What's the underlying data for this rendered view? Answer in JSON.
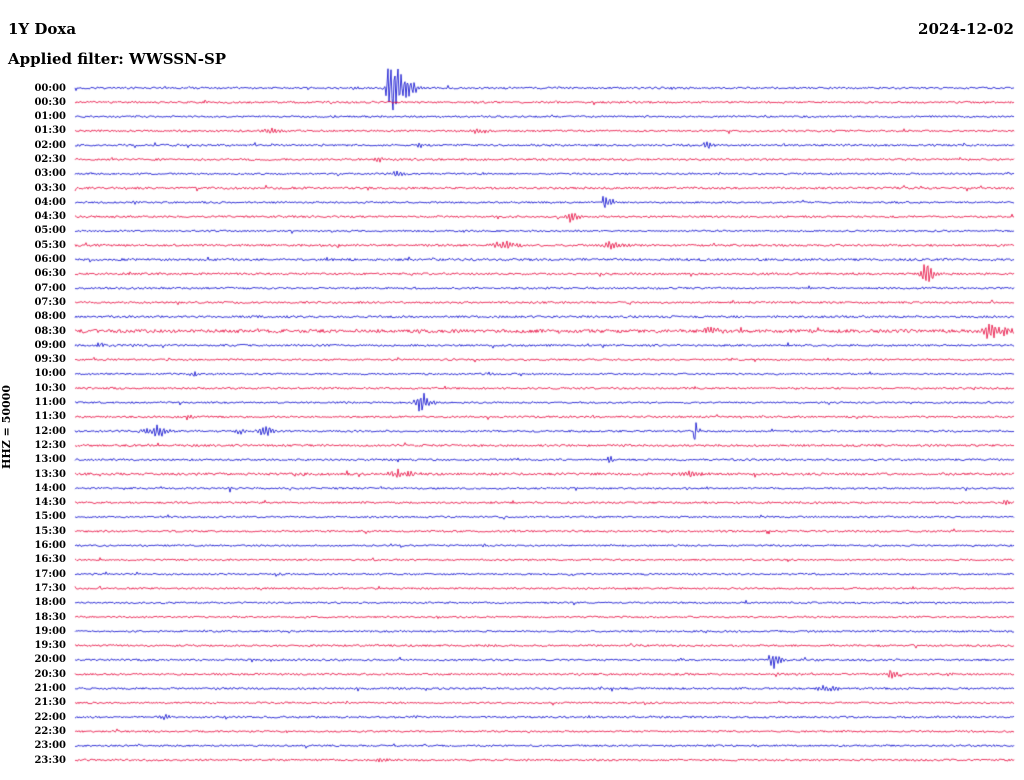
{
  "header": {
    "station": "1Y Doxa",
    "date": "2024-12-02",
    "filter_label": "Applied filter: WWSSN-SP"
  },
  "axis": {
    "left_label": "HHZ = 50000"
  },
  "chart_data": {
    "type": "line",
    "subtype": "seismogram-helicorder",
    "title": "1Y Doxa helicorder",
    "date": "2024-12-02",
    "filter": "WWSSN-SP",
    "channel_scale": "HHZ = 50000",
    "row_duration_min": 30,
    "colors": {
      "blue": "#0000cc",
      "red": "#e60039"
    },
    "note": "48 half-hour traces, alternating blue/red. Event positions p are fractions of trace width; a = peak amplitude (px); wl/wr = left/right envelope sigma (px).",
    "rows": [
      {
        "label": "00:00",
        "color": "blue",
        "noise": 1.0,
        "events": [
          {
            "p": 0.3,
            "a": 2,
            "wl": 4,
            "wr": 4
          },
          {
            "p": 0.335,
            "a": 24,
            "wl": 2.5,
            "wr": 14
          }
        ]
      },
      {
        "label": "00:30",
        "color": "red",
        "noise": 1.0,
        "events": [
          {
            "p": 0.23,
            "a": 1,
            "wl": 3,
            "wr": 3
          }
        ]
      },
      {
        "label": "01:00",
        "color": "blue",
        "noise": 0.9,
        "events": []
      },
      {
        "label": "01:30",
        "color": "red",
        "noise": 1.0,
        "events": [
          {
            "p": 0.21,
            "a": 3,
            "wl": 6,
            "wr": 8
          },
          {
            "p": 0.43,
            "a": 2.5,
            "wl": 5,
            "wr": 6
          }
        ]
      },
      {
        "label": "02:00",
        "color": "blue",
        "noise": 1.0,
        "events": [
          {
            "p": 0.262,
            "a": 1.5,
            "wl": 4,
            "wr": 4
          },
          {
            "p": 0.368,
            "a": 2,
            "wl": 3,
            "wr": 4
          },
          {
            "p": 0.671,
            "a": 4,
            "wl": 2,
            "wr": 5
          }
        ]
      },
      {
        "label": "02:30",
        "color": "red",
        "noise": 1.0,
        "events": [
          {
            "p": 0.323,
            "a": 2.5,
            "wl": 3,
            "wr": 4
          }
        ]
      },
      {
        "label": "03:00",
        "color": "blue",
        "noise": 0.9,
        "events": [
          {
            "p": 0.342,
            "a": 3.5,
            "wl": 2,
            "wr": 5
          }
        ]
      },
      {
        "label": "03:30",
        "color": "red",
        "noise": 1.1,
        "events": [
          {
            "p": 0.056,
            "a": 1.2,
            "wl": 3,
            "wr": 3
          }
        ]
      },
      {
        "label": "04:00",
        "color": "blue",
        "noise": 0.9,
        "events": [
          {
            "p": 0.063,
            "a": 2,
            "wl": 2,
            "wr": 3
          },
          {
            "p": 0.564,
            "a": 7,
            "wl": 2.5,
            "wr": 7
          }
        ]
      },
      {
        "label": "04:30",
        "color": "red",
        "noise": 1.0,
        "events": [
          {
            "p": 0.527,
            "a": 5,
            "wl": 2.5,
            "wr": 7
          }
        ]
      },
      {
        "label": "05:00",
        "color": "blue",
        "noise": 0.9,
        "events": []
      },
      {
        "label": "05:30",
        "color": "red",
        "noise": 1.1,
        "events": [
          {
            "p": 0.458,
            "a": 4,
            "wl": 9,
            "wr": 11
          },
          {
            "p": 0.57,
            "a": 4,
            "wl": 7,
            "wr": 9
          }
        ]
      },
      {
        "label": "06:00",
        "color": "blue",
        "noise": 1.2,
        "events": []
      },
      {
        "label": "06:30",
        "color": "red",
        "noise": 1.1,
        "events": [
          {
            "p": 0.905,
            "a": 9,
            "wl": 3,
            "wr": 8
          }
        ]
      },
      {
        "label": "07:00",
        "color": "blue",
        "noise": 1.0,
        "events": [
          {
            "p": 0.62,
            "a": 1.5,
            "wl": 3,
            "wr": 3
          }
        ]
      },
      {
        "label": "07:30",
        "color": "red",
        "noise": 1.0,
        "events": []
      },
      {
        "label": "08:00",
        "color": "blue",
        "noise": 1.1,
        "events": []
      },
      {
        "label": "08:30",
        "color": "red",
        "noise": 1.7,
        "events": [
          {
            "p": 0.675,
            "a": 3.5,
            "wl": 6,
            "wr": 8
          },
          {
            "p": 0.79,
            "a": 2,
            "wl": 3,
            "wr": 4
          },
          {
            "p": 0.974,
            "a": 8,
            "wl": 4,
            "wr": 16
          }
        ]
      },
      {
        "label": "09:00",
        "color": "blue",
        "noise": 1.0,
        "events": [
          {
            "p": 0.027,
            "a": 2,
            "wl": 3,
            "wr": 4
          },
          {
            "p": 0.064,
            "a": 2,
            "wl": 3,
            "wr": 4
          }
        ]
      },
      {
        "label": "09:30",
        "color": "red",
        "noise": 0.9,
        "events": []
      },
      {
        "label": "10:00",
        "color": "blue",
        "noise": 0.9,
        "events": [
          {
            "p": 0.128,
            "a": 2,
            "wl": 5,
            "wr": 6
          },
          {
            "p": 0.442,
            "a": 1.5,
            "wl": 4,
            "wr": 4
          }
        ]
      },
      {
        "label": "10:30",
        "color": "red",
        "noise": 1.0,
        "events": []
      },
      {
        "label": "11:00",
        "color": "blue",
        "noise": 0.9,
        "events": [
          {
            "p": 0.365,
            "a": 10,
            "wl": 2.5,
            "wr": 9
          }
        ]
      },
      {
        "label": "11:30",
        "color": "red",
        "noise": 1.0,
        "events": [
          {
            "p": 0.122,
            "a": 2.5,
            "wl": 4,
            "wr": 8
          }
        ]
      },
      {
        "label": "12:00",
        "color": "blue",
        "noise": 1.0,
        "events": [
          {
            "p": 0.085,
            "a": 6,
            "wl": 8,
            "wr": 9
          },
          {
            "p": 0.175,
            "a": 3,
            "wl": 4,
            "wr": 5
          },
          {
            "p": 0.2,
            "a": 6,
            "wl": 3,
            "wr": 7
          },
          {
            "p": 0.66,
            "a": 14,
            "wl": 0.8,
            "wr": 1.2
          }
        ]
      },
      {
        "label": "12:30",
        "color": "red",
        "noise": 1.1,
        "events": []
      },
      {
        "label": "13:00",
        "color": "blue",
        "noise": 1.0,
        "events": [
          {
            "p": 0.568,
            "a": 3,
            "wl": 2,
            "wr": 4
          }
        ]
      },
      {
        "label": "13:30",
        "color": "red",
        "noise": 1.2,
        "events": [
          {
            "p": 0.346,
            "a": 4,
            "wl": 8,
            "wr": 10
          },
          {
            "p": 0.655,
            "a": 4.5,
            "wl": 6,
            "wr": 8
          }
        ]
      },
      {
        "label": "14:00",
        "color": "blue",
        "noise": 0.9,
        "events": [
          {
            "p": 0.165,
            "a": 3,
            "wl": 1,
            "wr": 1.5
          }
        ]
      },
      {
        "label": "14:30",
        "color": "red",
        "noise": 1.0,
        "events": [
          {
            "p": 0.99,
            "a": 3,
            "wl": 2,
            "wr": 4
          }
        ]
      },
      {
        "label": "15:00",
        "color": "blue",
        "noise": 0.9,
        "events": []
      },
      {
        "label": "15:30",
        "color": "red",
        "noise": 1.0,
        "events": []
      },
      {
        "label": "16:00",
        "color": "blue",
        "noise": 0.9,
        "events": [
          {
            "p": 0.435,
            "a": 1.3,
            "wl": 3,
            "wr": 3
          }
        ]
      },
      {
        "label": "16:30",
        "color": "red",
        "noise": 0.9,
        "events": []
      },
      {
        "label": "17:00",
        "color": "blue",
        "noise": 0.9,
        "events": []
      },
      {
        "label": "17:30",
        "color": "red",
        "noise": 0.9,
        "events": []
      },
      {
        "label": "18:00",
        "color": "blue",
        "noise": 0.9,
        "events": []
      },
      {
        "label": "18:30",
        "color": "red",
        "noise": 0.9,
        "events": []
      },
      {
        "label": "19:00",
        "color": "blue",
        "noise": 0.9,
        "events": []
      },
      {
        "label": "19:30",
        "color": "red",
        "noise": 1.0,
        "events": [
          {
            "p": 0.442,
            "a": 1.5,
            "wl": 3,
            "wr": 3
          }
        ]
      },
      {
        "label": "20:00",
        "color": "blue",
        "noise": 1.0,
        "events": [
          {
            "p": 0.742,
            "a": 8,
            "wl": 3,
            "wr": 7
          }
        ]
      },
      {
        "label": "20:30",
        "color": "red",
        "noise": 1.0,
        "events": [
          {
            "p": 0.748,
            "a": 3,
            "wl": 1.5,
            "wr": 2.5
          },
          {
            "p": 0.868,
            "a": 5,
            "wl": 2.5,
            "wr": 6
          },
          {
            "p": 0.932,
            "a": 2.5,
            "wl": 2,
            "wr": 3
          }
        ]
      },
      {
        "label": "21:00",
        "color": "blue",
        "noise": 1.0,
        "events": [
          {
            "p": 0.56,
            "a": 1.5,
            "wl": 3,
            "wr": 3
          },
          {
            "p": 0.8,
            "a": 3,
            "wl": 8,
            "wr": 10
          }
        ]
      },
      {
        "label": "21:30",
        "color": "red",
        "noise": 0.9,
        "events": []
      },
      {
        "label": "22:00",
        "color": "blue",
        "noise": 1.0,
        "events": [
          {
            "p": 0.09,
            "a": 2.5,
            "wl": 4,
            "wr": 7
          },
          {
            "p": 0.36,
            "a": 1.5,
            "wl": 2,
            "wr": 3
          }
        ]
      },
      {
        "label": "22:30",
        "color": "red",
        "noise": 0.9,
        "events": []
      },
      {
        "label": "23:00",
        "color": "blue",
        "noise": 0.9,
        "events": []
      },
      {
        "label": "23:30",
        "color": "red",
        "noise": 1.0,
        "events": [
          {
            "p": 0.325,
            "a": 2.5,
            "wl": 3,
            "wr": 5
          }
        ]
      }
    ]
  }
}
